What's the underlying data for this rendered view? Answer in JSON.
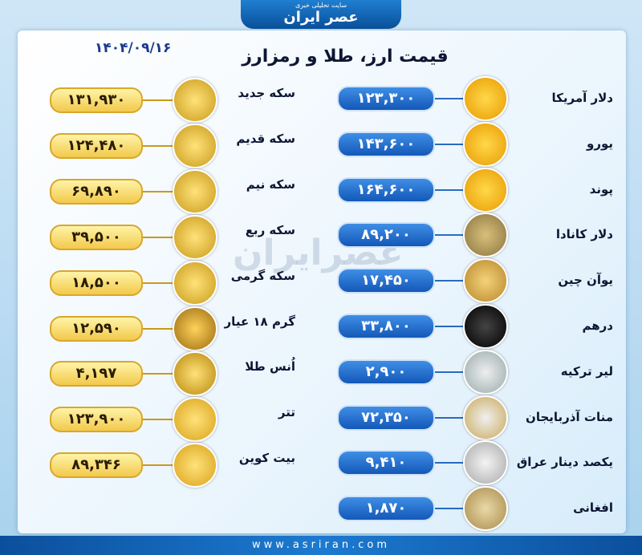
{
  "header": {
    "site_tagline": "سایت تحلیلی خبری",
    "logo": "عصر ایران"
  },
  "date": "۱۴۰۴/۰۹/۱۶",
  "title": "قیمت ارز، طلا و رمزارز",
  "watermark": "عصرایران",
  "currencies": [
    {
      "name": "دلار آمریکا",
      "price": "۱۲۳,۳۰۰"
    },
    {
      "name": "یورو",
      "price": "۱۴۳,۶۰۰"
    },
    {
      "name": "پوند",
      "price": "۱۶۴,۶۰۰"
    },
    {
      "name": "دلار کانادا",
      "price": "۸۹,۲۰۰"
    },
    {
      "name": "یوآن چین",
      "price": "۱۷,۴۵۰"
    },
    {
      "name": "درهم",
      "price": "۳۳,۸۰۰"
    },
    {
      "name": "لیر ترکیه",
      "price": "۲,۹۰۰"
    },
    {
      "name": "منات آذربایجان",
      "price": "۷۲,۳۵۰"
    },
    {
      "name": "یکصد دینار عراق",
      "price": "۹,۴۱۰"
    },
    {
      "name": "افغانی",
      "price": "۱,۸۷۰"
    }
  ],
  "gold_crypto": [
    {
      "name": "سکه جدید",
      "price": "۱۳۱,۹۳۰"
    },
    {
      "name": "سکه قدیم",
      "price": "۱۲۴,۴۸۰"
    },
    {
      "name": "سکه نیم",
      "price": "۶۹,۸۹۰"
    },
    {
      "name": "سکه ربع",
      "price": "۳۹,۵۰۰"
    },
    {
      "name": "سکه گرمی",
      "price": "۱۸,۵۰۰"
    },
    {
      "name": "گرم ۱۸ عیار",
      "price": "۱۲,۵۹۰"
    },
    {
      "name": "اُنس طلا",
      "price": "۴,۱۹۷"
    },
    {
      "name": "تتر",
      "price": "۱۲۳,۹۰۰"
    },
    {
      "name": "بیت کوین",
      "price": "۸۹,۳۴۶"
    }
  ],
  "footer": {
    "url": "www.asriran.com"
  }
}
